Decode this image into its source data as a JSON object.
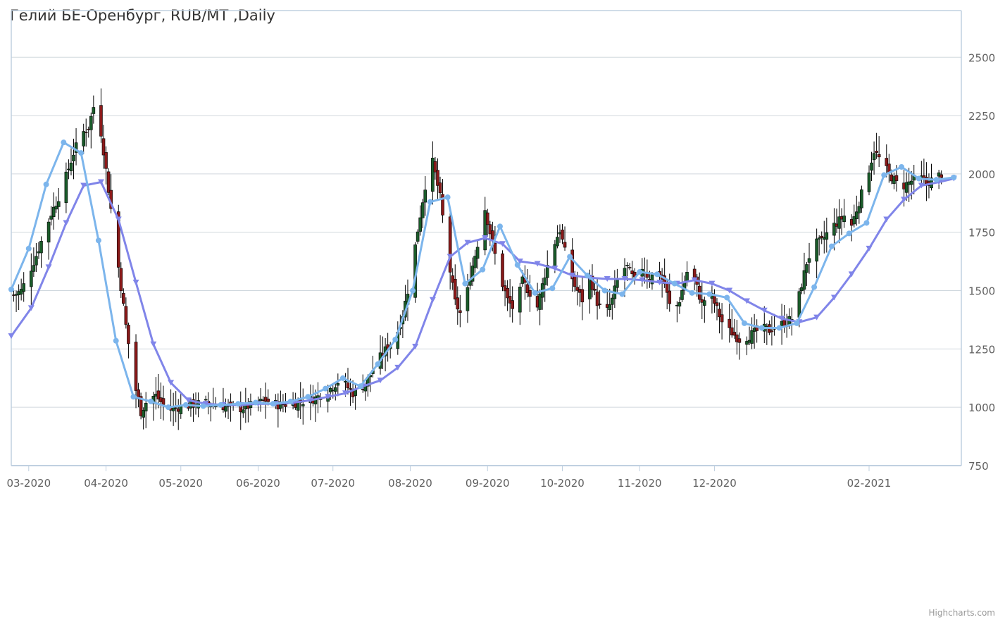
{
  "credits": "Highcharts.com",
  "chart_data": {
    "type": "candlestick",
    "title": "Гелий БЕ-Оренбург, RUB/MT ,Daily",
    "xlabel": "",
    "ylabel": "",
    "ylim": [
      750,
      2700
    ],
    "y_ticks": [
      750,
      1000,
      1250,
      1500,
      1750,
      2000,
      2250,
      2500
    ],
    "x_range": [
      "2020-02-23",
      "2021-03-10"
    ],
    "x_ticks": [
      {
        "date": "2020-03-01",
        "label": "03-2020"
      },
      {
        "date": "2020-04-01",
        "label": "04-2020"
      },
      {
        "date": "2020-05-01",
        "label": "05-2020"
      },
      {
        "date": "2020-06-01",
        "label": "06-2020"
      },
      {
        "date": "2020-07-01",
        "label": "07-2020"
      },
      {
        "date": "2020-08-01",
        "label": "08-2020"
      },
      {
        "date": "2020-09-01",
        "label": "09-2020"
      },
      {
        "date": "2020-10-01",
        "label": "10-2020"
      },
      {
        "date": "2020-11-01",
        "label": "11-2020"
      },
      {
        "date": "2020-12-01",
        "label": "12-2020"
      },
      {
        "date": "2021-02-01",
        "label": "02-2021"
      }
    ],
    "grid": true,
    "colors": {
      "up": "#1a5c2a",
      "down": "#8b1a1a",
      "wick": "#000000",
      "ma_short": "#7cb5ec",
      "ma_long": "#8085e9"
    },
    "close_points": [
      [
        "2020-02-24",
        1480
      ],
      [
        "2020-02-27",
        1500
      ],
      [
        "2020-03-01",
        1570
      ],
      [
        "2020-03-04",
        1650
      ],
      [
        "2020-03-07",
        1740
      ],
      [
        "2020-03-10",
        1830
      ],
      [
        "2020-03-13",
        1900
      ],
      [
        "2020-03-16",
        1990
      ],
      [
        "2020-03-19",
        2090
      ],
      [
        "2020-03-22",
        2170
      ],
      [
        "2020-03-25",
        2200
      ],
      [
        "2020-03-28",
        2330
      ],
      [
        "2020-03-31",
        2100
      ],
      [
        "2020-04-03",
        1850
      ],
      [
        "2020-04-06",
        1600
      ],
      [
        "2020-04-09",
        1350
      ],
      [
        "2020-04-12",
        1120
      ],
      [
        "2020-04-15",
        980
      ],
      [
        "2020-04-18",
        1040
      ],
      [
        "2020-04-21",
        1050
      ],
      [
        "2020-04-24",
        1010
      ],
      [
        "2020-04-27",
        990
      ],
      [
        "2020-04-30",
        1000
      ],
      [
        "2020-05-05",
        1010
      ],
      [
        "2020-05-10",
        1020
      ],
      [
        "2020-05-15",
        1010
      ],
      [
        "2020-05-20",
        1000
      ],
      [
        "2020-05-25",
        995
      ],
      [
        "2020-05-30",
        1010
      ],
      [
        "2020-06-04",
        1030
      ],
      [
        "2020-06-09",
        1010
      ],
      [
        "2020-06-14",
        1015
      ],
      [
        "2020-06-19",
        1025
      ],
      [
        "2020-06-24",
        1040
      ],
      [
        "2020-06-29",
        1070
      ],
      [
        "2020-07-04",
        1120
      ],
      [
        "2020-07-09",
        1060
      ],
      [
        "2020-07-14",
        1100
      ],
      [
        "2020-07-19",
        1200
      ],
      [
        "2020-07-23",
        1260
      ],
      [
        "2020-07-26",
        1290
      ],
      [
        "2020-07-29",
        1400
      ],
      [
        "2020-08-01",
        1550
      ],
      [
        "2020-08-04",
        1760
      ],
      [
        "2020-08-07",
        1950
      ],
      [
        "2020-08-10",
        2050
      ],
      [
        "2020-08-13",
        1900
      ],
      [
        "2020-08-16",
        1650
      ],
      [
        "2020-08-19",
        1450
      ],
      [
        "2020-08-22",
        1380
      ],
      [
        "2020-08-25",
        1560
      ],
      [
        "2020-08-28",
        1700
      ],
      [
        "2020-08-31",
        1850
      ],
      [
        "2020-09-03",
        1700
      ],
      [
        "2020-09-06",
        1560
      ],
      [
        "2020-09-09",
        1460
      ],
      [
        "2020-09-12",
        1410
      ],
      [
        "2020-09-15",
        1540
      ],
      [
        "2020-09-18",
        1490
      ],
      [
        "2020-09-21",
        1430
      ],
      [
        "2020-09-24",
        1570
      ],
      [
        "2020-09-27",
        1680
      ],
      [
        "2020-09-30",
        1760
      ],
      [
        "2020-10-03",
        1620
      ],
      [
        "2020-10-06",
        1520
      ],
      [
        "2020-10-09",
        1460
      ],
      [
        "2020-10-12",
        1560
      ],
      [
        "2020-10-15",
        1450
      ],
      [
        "2020-10-18",
        1390
      ],
      [
        "2020-10-21",
        1460
      ],
      [
        "2020-10-24",
        1590
      ],
      [
        "2020-10-27",
        1600
      ],
      [
        "2020-10-30",
        1540
      ],
      [
        "2020-11-02",
        1600
      ],
      [
        "2020-11-05",
        1550
      ],
      [
        "2020-11-08",
        1590
      ],
      [
        "2020-11-11",
        1530
      ],
      [
        "2020-11-14",
        1390
      ],
      [
        "2020-11-17",
        1460
      ],
      [
        "2020-11-20",
        1580
      ],
      [
        "2020-11-23",
        1550
      ],
      [
        "2020-11-26",
        1440
      ],
      [
        "2020-11-29",
        1500
      ],
      [
        "2020-12-02",
        1420
      ],
      [
        "2020-12-05",
        1340
      ],
      [
        "2020-12-08",
        1320
      ],
      [
        "2020-12-11",
        1290
      ],
      [
        "2020-12-14",
        1300
      ],
      [
        "2020-12-17",
        1320
      ],
      [
        "2020-12-20",
        1340
      ],
      [
        "2020-12-23",
        1330
      ],
      [
        "2020-12-26",
        1350
      ],
      [
        "2020-12-29",
        1360
      ],
      [
        "2021-01-01",
        1380
      ],
      [
        "2021-01-04",
        1480
      ],
      [
        "2021-01-07",
        1620
      ],
      [
        "2021-01-10",
        1700
      ],
      [
        "2021-01-13",
        1710
      ],
      [
        "2021-01-16",
        1760
      ],
      [
        "2021-01-19",
        1790
      ],
      [
        "2021-01-22",
        1820
      ],
      [
        "2021-01-25",
        1780
      ],
      [
        "2021-01-28",
        1880
      ],
      [
        "2021-01-31",
        1980
      ],
      [
        "2021-02-03",
        2100
      ],
      [
        "2021-02-06",
        2050
      ],
      [
        "2021-02-09",
        2000
      ],
      [
        "2021-02-12",
        1960
      ],
      [
        "2021-02-15",
        1950
      ],
      [
        "2021-02-18",
        1970
      ],
      [
        "2021-02-21",
        1990
      ],
      [
        "2021-02-24",
        1960
      ],
      [
        "2021-02-27",
        1980
      ],
      [
        "2021-03-02",
        2000
      ]
    ],
    "series": [
      {
        "values": [
          [
            "2020-02-23",
            1505
          ],
          [
            "2020-03-01",
            1680
          ],
          [
            "2020-03-08",
            1955
          ],
          [
            "2020-03-15",
            2135
          ],
          [
            "2020-03-22",
            2090
          ],
          [
            "2020-03-29",
            1715
          ],
          [
            "2020-04-05",
            1285
          ],
          [
            "2020-04-12",
            1045
          ],
          [
            "2020-04-19",
            1025
          ],
          [
            "2020-04-26",
            1000
          ],
          [
            "2020-05-03",
            1010
          ],
          [
            "2020-05-10",
            1005
          ],
          [
            "2020-05-17",
            1010
          ],
          [
            "2020-05-24",
            1015
          ],
          [
            "2020-05-31",
            1020
          ],
          [
            "2020-06-07",
            1015
          ],
          [
            "2020-06-14",
            1025
          ],
          [
            "2020-06-21",
            1045
          ],
          [
            "2020-06-28",
            1080
          ],
          [
            "2020-07-05",
            1125
          ],
          [
            "2020-07-12",
            1090
          ],
          [
            "2020-07-19",
            1185
          ],
          [
            "2020-07-26",
            1290
          ],
          [
            "2020-08-02",
            1500
          ],
          [
            "2020-08-09",
            1880
          ],
          [
            "2020-08-16",
            1900
          ],
          [
            "2020-08-23",
            1530
          ],
          [
            "2020-08-30",
            1590
          ],
          [
            "2020-09-06",
            1775
          ],
          [
            "2020-09-13",
            1610
          ],
          [
            "2020-09-20",
            1490
          ],
          [
            "2020-09-27",
            1510
          ],
          [
            "2020-10-04",
            1645
          ],
          [
            "2020-10-11",
            1565
          ],
          [
            "2020-10-18",
            1500
          ],
          [
            "2020-10-25",
            1485
          ],
          [
            "2020-11-01",
            1580
          ],
          [
            "2020-11-08",
            1570
          ],
          [
            "2020-11-15",
            1530
          ],
          [
            "2020-11-22",
            1490
          ],
          [
            "2020-11-29",
            1485
          ],
          [
            "2020-12-06",
            1470
          ],
          [
            "2020-12-13",
            1360
          ],
          [
            "2020-12-20",
            1340
          ],
          [
            "2020-12-27",
            1340
          ],
          [
            "2021-01-03",
            1360
          ],
          [
            "2021-01-10",
            1515
          ],
          [
            "2021-01-17",
            1690
          ],
          [
            "2021-01-24",
            1745
          ],
          [
            "2021-01-31",
            1790
          ],
          [
            "2021-02-07",
            1995
          ],
          [
            "2021-02-14",
            2030
          ],
          [
            "2021-02-21",
            1980
          ],
          [
            "2021-02-28",
            1975
          ],
          [
            "2021-03-07",
            1985
          ]
        ]
      },
      {
        "values": [
          [
            "2020-02-23",
            1305
          ],
          [
            "2020-03-02",
            1425
          ],
          [
            "2020-03-09",
            1600
          ],
          [
            "2020-03-16",
            1790
          ],
          [
            "2020-03-23",
            1950
          ],
          [
            "2020-03-30",
            1965
          ],
          [
            "2020-04-06",
            1805
          ],
          [
            "2020-04-13",
            1535
          ],
          [
            "2020-04-20",
            1270
          ],
          [
            "2020-04-27",
            1105
          ],
          [
            "2020-05-04",
            1030
          ],
          [
            "2020-05-11",
            1015
          ],
          [
            "2020-05-18",
            1010
          ],
          [
            "2020-05-25",
            1010
          ],
          [
            "2020-06-01",
            1015
          ],
          [
            "2020-06-08",
            1015
          ],
          [
            "2020-06-15",
            1020
          ],
          [
            "2020-06-22",
            1030
          ],
          [
            "2020-06-29",
            1045
          ],
          [
            "2020-07-06",
            1060
          ],
          [
            "2020-07-13",
            1090
          ],
          [
            "2020-07-20",
            1115
          ],
          [
            "2020-07-27",
            1170
          ],
          [
            "2020-08-03",
            1260
          ],
          [
            "2020-08-10",
            1460
          ],
          [
            "2020-08-17",
            1645
          ],
          [
            "2020-08-24",
            1705
          ],
          [
            "2020-08-31",
            1725
          ],
          [
            "2020-09-07",
            1700
          ],
          [
            "2020-09-14",
            1625
          ],
          [
            "2020-09-21",
            1615
          ],
          [
            "2020-09-28",
            1595
          ],
          [
            "2020-10-05",
            1565
          ],
          [
            "2020-10-12",
            1555
          ],
          [
            "2020-10-19",
            1550
          ],
          [
            "2020-10-26",
            1550
          ],
          [
            "2020-11-02",
            1545
          ],
          [
            "2020-11-09",
            1535
          ],
          [
            "2020-11-16",
            1530
          ],
          [
            "2020-11-23",
            1545
          ],
          [
            "2020-11-30",
            1530
          ],
          [
            "2020-12-07",
            1500
          ],
          [
            "2020-12-14",
            1455
          ],
          [
            "2020-12-21",
            1415
          ],
          [
            "2020-12-28",
            1380
          ],
          [
            "2021-01-04",
            1365
          ],
          [
            "2021-01-11",
            1385
          ],
          [
            "2021-01-18",
            1470
          ],
          [
            "2021-01-25",
            1570
          ],
          [
            "2021-02-01",
            1680
          ],
          [
            "2021-02-08",
            1805
          ],
          [
            "2021-02-15",
            1890
          ],
          [
            "2021-02-22",
            1950
          ],
          [
            "2021-03-01",
            1965
          ],
          [
            "2021-03-07",
            1980
          ]
        ]
      }
    ]
  }
}
